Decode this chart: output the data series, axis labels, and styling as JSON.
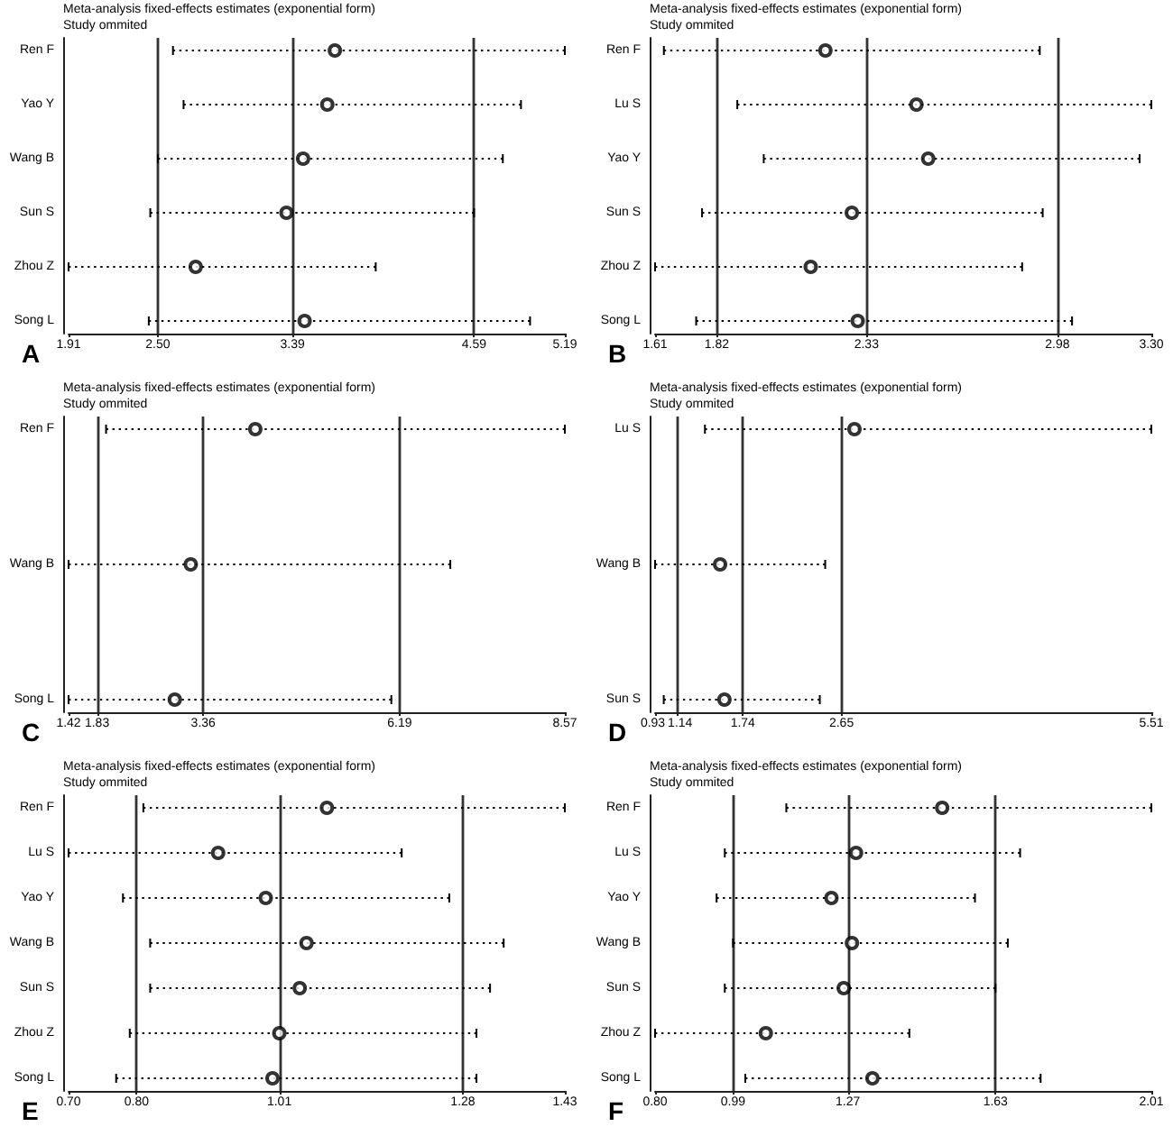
{
  "chart_data": [
    {
      "type": "scatter",
      "orientation": "horizontal",
      "title": "Meta-analysis fixed-effects estimates (exponential form)",
      "ylabel": "Study ommited",
      "categories": [
        "Ren F",
        "Yao Y",
        "Wang B",
        "Sun S",
        "Zhou Z",
        "Song L"
      ],
      "values": [
        3.67,
        3.62,
        3.46,
        3.35,
        2.75,
        3.47
      ],
      "errors": [
        [
          2.6,
          5.19
        ],
        [
          2.67,
          4.9
        ],
        [
          2.5,
          4.78
        ],
        [
          2.45,
          4.59
        ],
        [
          1.91,
          3.94
        ],
        [
          2.44,
          4.96
        ]
      ],
      "xlim": [
        1.91,
        5.19
      ],
      "xticks": [
        1.91,
        {
          "value": 2.5,
          "label": "2.50"
        },
        3.39,
        4.59,
        5.19
      ],
      "ref_lines": [
        {
          "axis": "x",
          "value": 2.5
        },
        {
          "axis": "x",
          "value": 3.39
        },
        {
          "axis": "x",
          "value": 4.59
        }
      ],
      "color": "#000000",
      "marker": "circle",
      "line_style": "dotted",
      "annotations": [
        "A"
      ]
    },
    {
      "type": "scatter",
      "orientation": "horizontal",
      "title": "Meta-analysis fixed-effects estimates (exponential form)",
      "ylabel": "Study ommited",
      "categories": [
        "Ren F",
        "Lu S",
        "Yao Y",
        "Sun S",
        "Zhou Z",
        "Song L"
      ],
      "values": [
        2.19,
        2.5,
        2.54,
        2.28,
        2.14,
        2.3
      ],
      "errors": [
        [
          1.64,
          2.92
        ],
        [
          1.89,
          3.3
        ],
        [
          1.98,
          3.26
        ],
        [
          1.77,
          2.93
        ],
        [
          1.61,
          2.86
        ],
        [
          1.75,
          3.03
        ]
      ],
      "xlim": [
        1.61,
        3.3
      ],
      "xticks": [
        1.61,
        1.82,
        2.33,
        2.98,
        {
          "value": 3.3,
          "label": "3.30"
        }
      ],
      "ref_lines": [
        {
          "axis": "x",
          "value": 1.82
        },
        {
          "axis": "x",
          "value": 2.33
        },
        {
          "axis": "x",
          "value": 2.98
        }
      ],
      "color": "#000000",
      "marker": "circle",
      "line_style": "dotted",
      "annotations": [
        "B"
      ]
    },
    {
      "type": "scatter",
      "orientation": "horizontal",
      "title": "Meta-analysis fixed-effects estimates (exponential form)",
      "ylabel": "Study ommited",
      "categories": [
        "Ren F",
        "Wang B",
        "Song L"
      ],
      "values": [
        4.11,
        3.18,
        2.95
      ],
      "errors": [
        [
          1.96,
          8.57
        ],
        [
          1.42,
          6.92
        ],
        [
          1.42,
          6.07
        ]
      ],
      "xlim": [
        1.42,
        8.57
      ],
      "xticks": [
        1.42,
        1.83,
        3.36,
        6.19,
        8.57
      ],
      "ref_lines": [
        {
          "axis": "x",
          "value": 1.83
        },
        {
          "axis": "x",
          "value": 3.36
        },
        {
          "axis": "x",
          "value": 6.19
        }
      ],
      "color": "#000000",
      "marker": "circle",
      "line_style": "dotted",
      "annotations": [
        "C"
      ]
    },
    {
      "type": "scatter",
      "orientation": "horizontal",
      "title": "Meta-analysis fixed-effects estimates (exponential form)",
      "ylabel": "Study ommited",
      "categories": [
        "Lu S",
        "Wang B",
        "Sun S"
      ],
      "values": [
        2.77,
        1.53,
        1.57
      ],
      "errors": [
        [
          1.39,
          5.51
        ],
        [
          0.93,
          2.5
        ],
        [
          1.01,
          2.45
        ]
      ],
      "xlim": [
        0.93,
        5.51
      ],
      "xticks": [
        0.93,
        1.14,
        1.74,
        2.65,
        5.51
      ],
      "ref_lines": [
        {
          "axis": "x",
          "value": 1.14
        },
        {
          "axis": "x",
          "value": 1.74
        },
        {
          "axis": "x",
          "value": 2.65
        }
      ],
      "color": "#000000",
      "marker": "circle",
      "line_style": "dotted",
      "annotations": [
        "D"
      ]
    },
    {
      "type": "scatter",
      "orientation": "horizontal",
      "title": "Meta-analysis fixed-effects estimates (exponential form)",
      "ylabel": "Study ommited",
      "categories": [
        "Ren F",
        "Lu S",
        "Yao Y",
        "Wang B",
        "Sun S",
        "Zhou Z",
        "Song L"
      ],
      "values": [
        1.08,
        0.92,
        0.99,
        1.05,
        1.04,
        1.01,
        1.0
      ],
      "errors": [
        [
          0.81,
          1.43
        ],
        [
          0.7,
          1.19
        ],
        [
          0.78,
          1.26
        ],
        [
          0.82,
          1.34
        ],
        [
          0.82,
          1.32
        ],
        [
          0.79,
          1.3
        ],
        [
          0.77,
          1.3
        ]
      ],
      "xlim": [
        0.7,
        1.43
      ],
      "xticks": [
        {
          "value": 0.7,
          "label": "0.70"
        },
        {
          "value": 0.8,
          "label": "0.80"
        },
        1.01,
        1.28,
        1.43
      ],
      "ref_lines": [
        {
          "axis": "x",
          "value": 0.8
        },
        {
          "axis": "x",
          "value": 1.01
        },
        {
          "axis": "x",
          "value": 1.28
        }
      ],
      "color": "#000000",
      "marker": "circle",
      "line_style": "dotted",
      "annotations": [
        "E"
      ]
    },
    {
      "type": "scatter",
      "orientation": "horizontal",
      "title": "Meta-analysis fixed-effects estimates (exponential form)",
      "ylabel": "Study ommited",
      "categories": [
        "Ren F",
        "Lu S",
        "Yao Y",
        "Wang B",
        "Sun S",
        "Zhou Z",
        "Song L"
      ],
      "values": [
        1.5,
        1.29,
        1.23,
        1.28,
        1.26,
        1.07,
        1.33
      ],
      "errors": [
        [
          1.12,
          2.01
        ],
        [
          0.97,
          1.69
        ],
        [
          0.95,
          1.58
        ],
        [
          0.99,
          1.66
        ],
        [
          0.97,
          1.63
        ],
        [
          0.8,
          1.42
        ],
        [
          1.02,
          1.74
        ]
      ],
      "xlim": [
        0.8,
        2.01
      ],
      "xticks": [
        {
          "value": 0.8,
          "label": "0.80"
        },
        0.99,
        1.27,
        1.63,
        2.01
      ],
      "ref_lines": [
        {
          "axis": "x",
          "value": 0.99
        },
        {
          "axis": "x",
          "value": 1.27
        },
        {
          "axis": "x",
          "value": 1.63
        }
      ],
      "color": "#000000",
      "marker": "circle",
      "line_style": "dotted",
      "annotations": [
        "F"
      ]
    }
  ]
}
